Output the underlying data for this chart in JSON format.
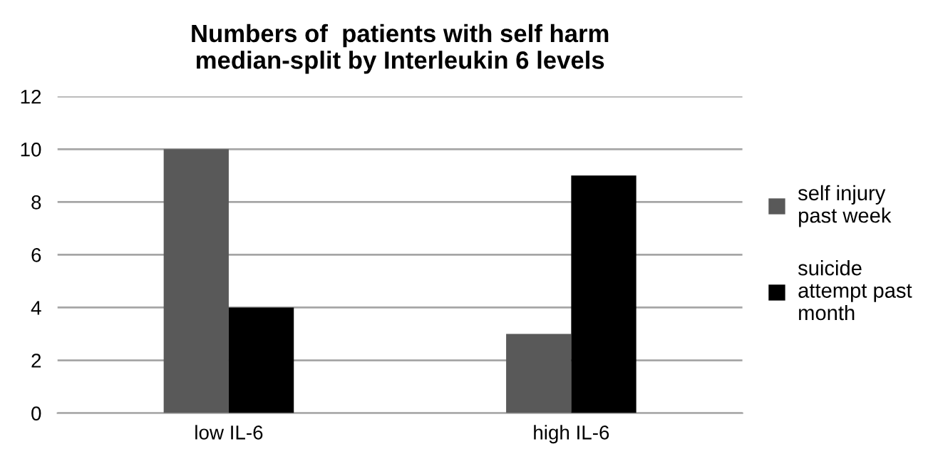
{
  "chart_data": {
    "type": "bar",
    "title": "Numbers of  patients with self harm\nmedian-split by Interleukin 6 levels",
    "categories": [
      "low IL-6",
      "high IL-6"
    ],
    "series": [
      {
        "name": "self injury\npast week",
        "color": "#595959",
        "values": [
          10,
          3
        ]
      },
      {
        "name": "suicide\nattempt past\nmonth",
        "color": "#000000",
        "values": [
          4,
          9
        ]
      }
    ],
    "ylim": [
      0,
      12
    ],
    "yticks": [
      0,
      2,
      4,
      6,
      8,
      10,
      12
    ],
    "grid": "y",
    "legend": "right"
  }
}
